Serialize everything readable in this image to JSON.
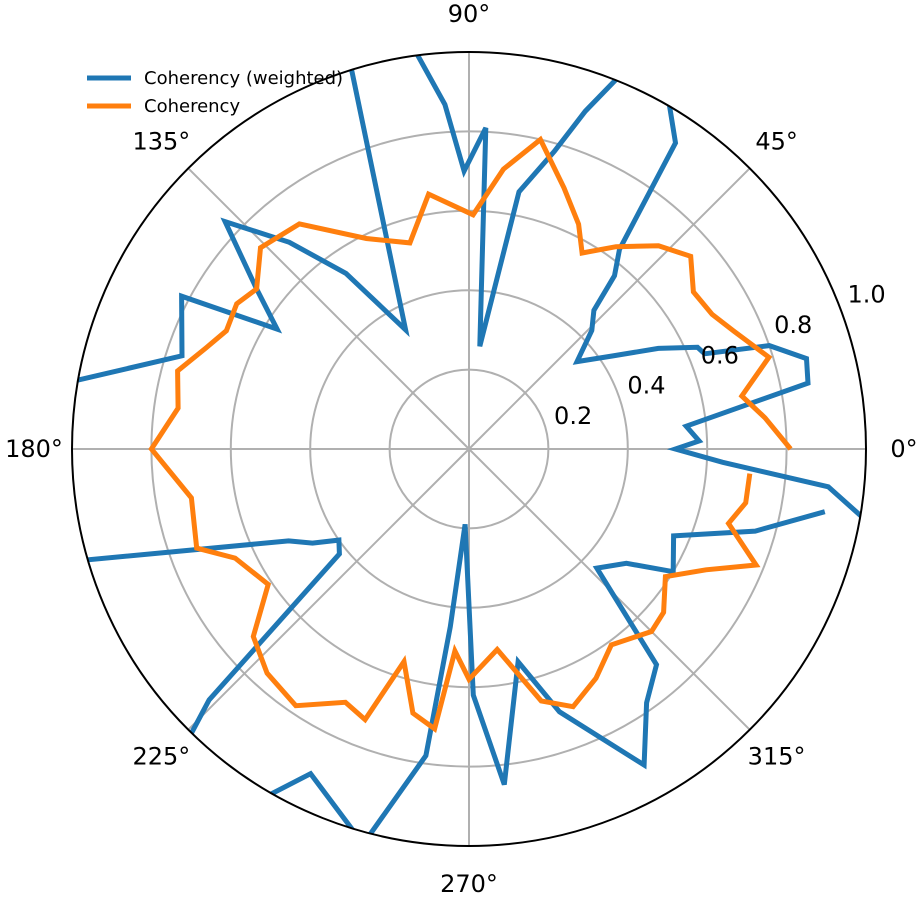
{
  "chart_data": {
    "type": "polar-line",
    "title": "",
    "angle_unit": "degrees",
    "radial_range": [
      0,
      1.0
    ],
    "grid": true,
    "legend_placement": "top-left",
    "angular_tick_labels": [
      {
        "deg": 0,
        "label": "0°"
      },
      {
        "deg": 45,
        "label": "45°"
      },
      {
        "deg": 90,
        "label": "90°"
      },
      {
        "deg": 135,
        "label": "135°"
      },
      {
        "deg": 180,
        "label": "180°"
      },
      {
        "deg": 225,
        "label": "225°"
      },
      {
        "deg": 270,
        "label": "270°"
      },
      {
        "deg": 315,
        "label": "315°"
      }
    ],
    "radial_tick_labels": [
      {
        "r": 0.2,
        "label": "0.2"
      },
      {
        "r": 0.4,
        "label": "0.4"
      },
      {
        "r": 0.6,
        "label": "0.6"
      },
      {
        "r": 0.8,
        "label": "0.8"
      },
      {
        "r": 1.0,
        "label": "1.0"
      }
    ],
    "series": [
      {
        "name": "Coherency (weighted)",
        "color": "#1f77b4",
        "theta_deg": [
          -10,
          -6,
          -3,
          0,
          2,
          6,
          11,
          15,
          19,
          22,
          24,
          28,
          33,
          39,
          44,
          48,
          50,
          53,
          56,
          61,
          66,
          71,
          74,
          79,
          84,
          87,
          91,
          94,
          100,
          106,
          118,
          125,
          131,
          137,
          143,
          148,
          152,
          162,
          172,
          196,
          207,
          211,
          215,
          219,
          224,
          229,
          234,
          244,
          255,
          262,
          264,
          267,
          271,
          276,
          283,
          289,
          299,
          305,
          311,
          317,
          324,
          329,
          337,
          344,
          350
        ],
        "r": [
          1.01,
          0.91,
          0.64,
          0.52,
          0.58,
          0.55,
          0.87,
          0.88,
          0.8,
          0.64,
          0.63,
          0.54,
          0.43,
          0.35,
          0.43,
          0.47,
          0.57,
          0.63,
          0.93,
          1.03,
          1.11,
          0.9,
          0.78,
          0.66,
          0.26,
          0.81,
          0.7,
          0.87,
          1.13,
          1.28,
          0.34,
          0.54,
          0.69,
          0.84,
          0.67,
          0.57,
          0.82,
          0.76,
          1.09,
          1.02,
          0.51,
          0.46,
          0.4,
          0.42,
          0.91,
          1.25,
          1.21,
          0.91,
          1.03,
          0.78,
          0.45,
          0.19,
          0.62,
          0.85,
          0.55,
          0.7,
          0.91,
          0.78,
          0.72,
          0.44,
          0.49,
          0.6,
          0.56,
          0.75,
          0.91
        ]
      },
      {
        "name": "Coherency",
        "color": "#ff7f0e",
        "theta_deg": [
          0,
          6,
          11,
          17,
          24,
          29,
          35,
          41,
          47,
          54,
          60,
          64,
          70,
          77,
          83,
          89,
          99,
          106,
          116,
          127,
          136,
          143,
          148,
          154,
          159,
          165,
          172,
          180,
          190,
          200,
          205,
          214,
          221,
          228,
          236,
          244,
          249,
          253,
          258,
          263,
          266,
          270,
          278,
          286,
          292,
          299,
          306,
          315,
          320,
          327,
          333,
          338,
          344,
          349,
          355
        ],
        "r": [
          0.81,
          0.75,
          0.7,
          0.79,
          0.73,
          0.7,
          0.69,
          0.74,
          0.7,
          0.63,
          0.57,
          0.63,
          0.7,
          0.8,
          0.71,
          0.59,
          0.65,
          0.54,
          0.59,
          0.71,
          0.73,
          0.67,
          0.69,
          0.68,
          0.71,
          0.76,
          0.74,
          0.8,
          0.71,
          0.73,
          0.65,
          0.61,
          0.72,
          0.76,
          0.78,
          0.71,
          0.73,
          0.56,
          0.68,
          0.71,
          0.51,
          0.58,
          0.51,
          0.66,
          0.7,
          0.66,
          0.61,
          0.65,
          0.64,
          0.59,
          0.67,
          0.78,
          0.68,
          0.71,
          0.71
        ]
      }
    ]
  }
}
